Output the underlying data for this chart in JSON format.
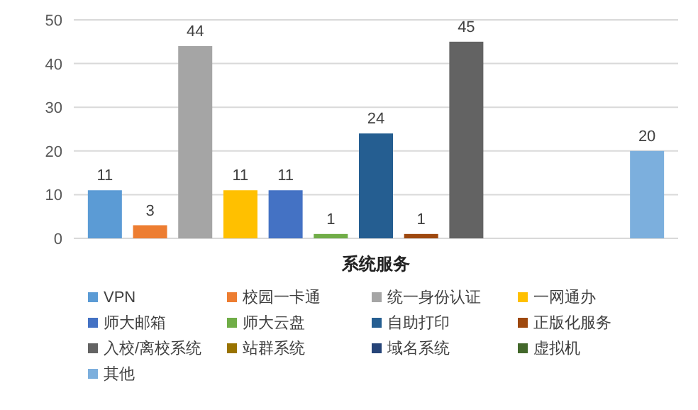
{
  "chart_data": {
    "type": "bar",
    "categories": [
      "系统服务"
    ],
    "ylim": [
      0,
      50
    ],
    "yticks": [
      0,
      10,
      20,
      30,
      40,
      50
    ],
    "grid": "y",
    "legend": "bottom",
    "data_labels": true,
    "series": [
      {
        "name": "VPN",
        "color": "#5b9bd5",
        "values": [
          11
        ]
      },
      {
        "name": "校园一卡通",
        "color": "#ed7d31",
        "values": [
          3
        ]
      },
      {
        "name": "统一身份认证",
        "color": "#a5a5a5",
        "values": [
          44
        ]
      },
      {
        "name": "一网通办",
        "color": "#ffc000",
        "values": [
          11
        ]
      },
      {
        "name": "师大邮箱",
        "color": "#4472c4",
        "values": [
          11
        ]
      },
      {
        "name": "师大云盘",
        "color": "#70ad47",
        "values": [
          1
        ]
      },
      {
        "name": "自助打印",
        "color": "#255e91",
        "values": [
          24
        ]
      },
      {
        "name": "正版化服务",
        "color": "#9e480e",
        "values": [
          1
        ]
      },
      {
        "name": "入校/离校系统",
        "color": "#636363",
        "values": [
          45
        ]
      },
      {
        "name": "站群系统",
        "color": "#997300",
        "values": [
          null
        ]
      },
      {
        "name": "域名系统",
        "color": "#264478",
        "values": [
          null
        ]
      },
      {
        "name": "虚拟机",
        "color": "#43682b",
        "values": [
          null
        ]
      },
      {
        "name": "其他",
        "color": "#7cafdd",
        "values": [
          20
        ]
      }
    ]
  }
}
